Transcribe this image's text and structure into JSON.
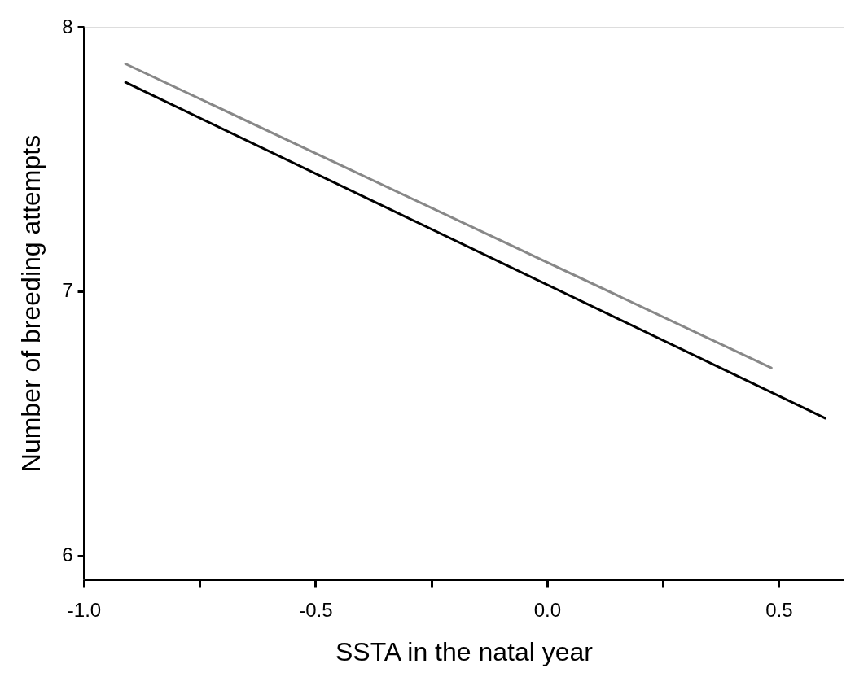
{
  "chart_data": {
    "type": "line",
    "xlabel": "SSTA in the natal year",
    "ylabel": "Number of breeding attempts",
    "xlim": [
      -1.0,
      0.64
    ],
    "ylim": [
      5.91,
      8
    ],
    "xticks": [
      {
        "value": -1.0,
        "label": "-1.0"
      },
      {
        "value": -0.75,
        "label": null
      },
      {
        "value": -0.5,
        "label": "-0.5"
      },
      {
        "value": -0.25,
        "label": null
      },
      {
        "value": 0.0,
        "label": "0.0"
      },
      {
        "value": 0.25,
        "label": null
      },
      {
        "value": 0.5,
        "label": "0.5"
      }
    ],
    "yticks": [
      6,
      7,
      8
    ],
    "grid": false,
    "legend": false,
    "marker": "none",
    "line_style": "solid",
    "series": [
      {
        "color": "#888888",
        "x": [
          -0.91,
          0.484
        ],
        "values": [
          7.86,
          6.71
        ]
      },
      {
        "color": "#000000",
        "x": [
          -0.91,
          0.6
        ],
        "values": [
          7.79,
          6.52
        ]
      }
    ]
  }
}
